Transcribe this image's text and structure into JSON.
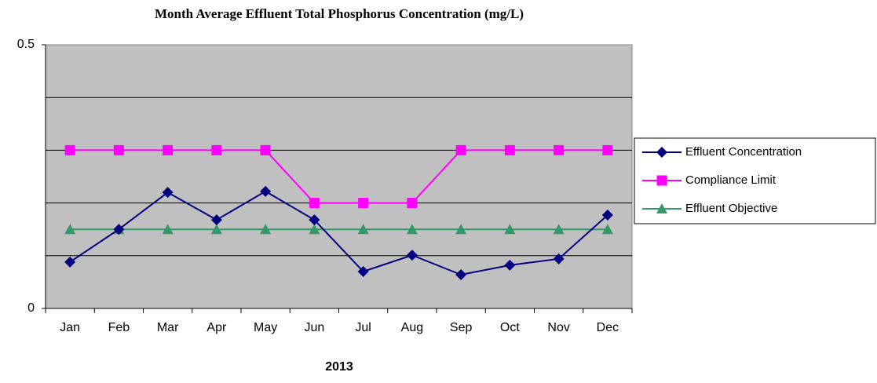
{
  "chart_data": {
    "type": "line",
    "title": "Month Average Effluent Total Phosphorus Concentration (mg/L)",
    "x_label": "2013",
    "categories": [
      "Jan",
      "Feb",
      "Mar",
      "Apr",
      "May",
      "Jun",
      "Jul",
      "Aug",
      "Sep",
      "Oct",
      "Nov",
      "Dec"
    ],
    "series": [
      {
        "name": "Effluent Concentration",
        "color": "#000080",
        "marker": "diamond",
        "values": [
          0.088,
          0.15,
          0.22,
          0.168,
          0.222,
          0.168,
          0.07,
          0.101,
          0.064,
          0.082,
          0.094,
          0.177
        ]
      },
      {
        "name": "Compliance Limit",
        "color": "#ff00ff",
        "marker": "square",
        "values": [
          0.3,
          0.3,
          0.3,
          0.3,
          0.3,
          0.2,
          0.2,
          0.2,
          0.3,
          0.3,
          0.3,
          0.3
        ]
      },
      {
        "name": "Effluent Objective",
        "color": "#339966",
        "marker": "triangle",
        "values": [
          0.15,
          0.15,
          0.15,
          0.15,
          0.15,
          0.15,
          0.15,
          0.15,
          0.15,
          0.15,
          0.15,
          0.15
        ]
      }
    ],
    "ylim": [
      0,
      0.5
    ],
    "yticks": [
      0,
      0.5
    ],
    "grid_lines": [
      0.1,
      0.2,
      0.3,
      0.4
    ],
    "legend": "right",
    "plot_background": "#c0c0c0"
  }
}
